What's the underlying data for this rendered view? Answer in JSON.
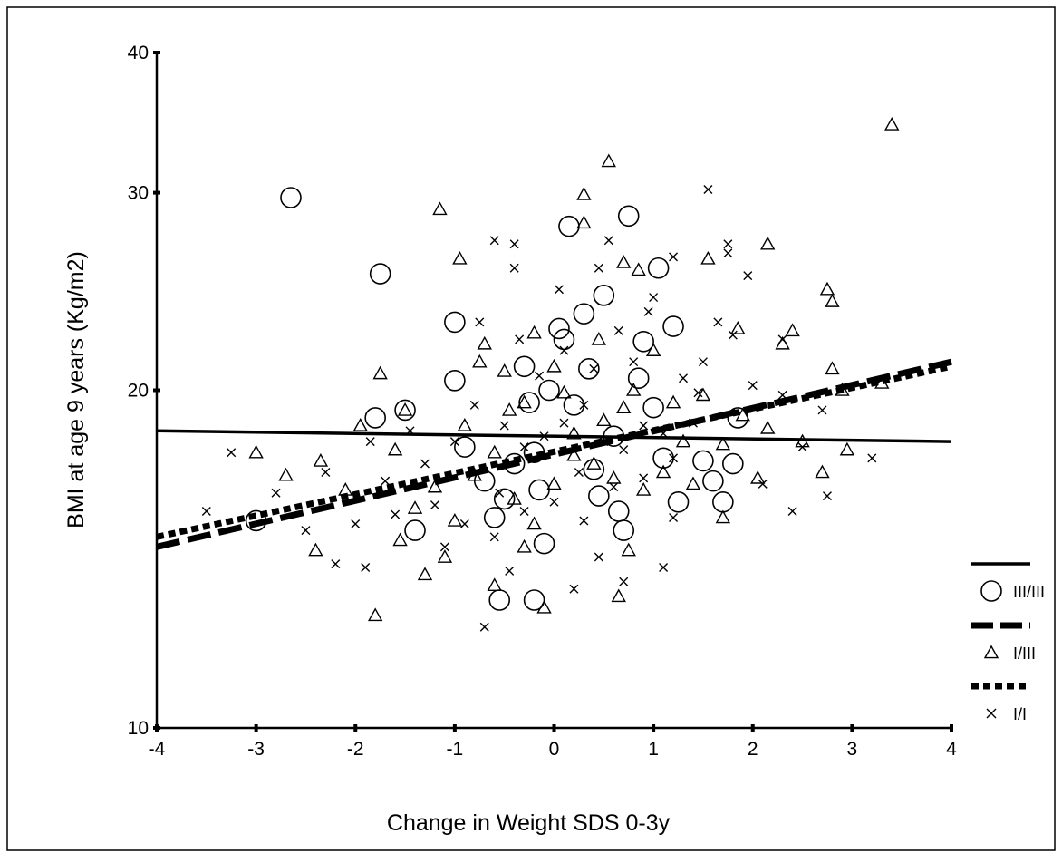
{
  "chart_data": {
    "type": "scatter",
    "xlabel": "Change in Weight SDS 0-3y",
    "ylabel": "BMI at age 9 years (Kg/m2)",
    "xlim": [
      -4,
      4
    ],
    "ylim": [
      10,
      40
    ],
    "yscale": "log",
    "x_ticks": [
      -4,
      -3,
      -2,
      -1,
      0,
      1,
      2,
      3,
      4
    ],
    "x_tick_labels": [
      "-4",
      "-3",
      "-2",
      "-1",
      "0",
      "1",
      "2",
      "3",
      "4"
    ],
    "y_ticks": [
      10,
      20,
      30,
      40
    ],
    "y_tick_labels": [
      "10",
      "20",
      "30",
      "40"
    ],
    "grid": false,
    "legend_position": "right",
    "fit_lines": [
      {
        "group": "III/III",
        "style": "solid",
        "x": [
          -4,
          4
        ],
        "y": [
          18.4,
          18.0
        ]
      },
      {
        "group": "I/III",
        "style": "dashed",
        "x": [
          -4,
          4
        ],
        "y": [
          14.5,
          21.2
        ]
      },
      {
        "group": "I/I",
        "style": "dotted",
        "x": [
          -4,
          4
        ],
        "y": [
          14.8,
          21.0
        ]
      }
    ],
    "series": [
      {
        "name": "III/III",
        "marker": "circle",
        "points": [
          [
            -2.65,
            29.7
          ],
          [
            -1.75,
            25.4
          ],
          [
            -3.0,
            15.3
          ],
          [
            -1.8,
            18.9
          ],
          [
            -1.5,
            19.2
          ],
          [
            -1.4,
            15.0
          ],
          [
            -1.0,
            23.0
          ],
          [
            -1.0,
            20.4
          ],
          [
            -0.9,
            17.8
          ],
          [
            -0.7,
            16.6
          ],
          [
            -0.6,
            15.4
          ],
          [
            -0.55,
            13.0
          ],
          [
            -0.5,
            16.0
          ],
          [
            -0.4,
            17.2
          ],
          [
            -0.3,
            21.0
          ],
          [
            -0.25,
            19.5
          ],
          [
            -0.2,
            17.6
          ],
          [
            -0.15,
            16.3
          ],
          [
            -0.1,
            14.6
          ],
          [
            -0.05,
            20.0
          ],
          [
            0.05,
            22.7
          ],
          [
            0.1,
            22.2
          ],
          [
            0.15,
            28.0
          ],
          [
            0.2,
            19.4
          ],
          [
            0.3,
            23.4
          ],
          [
            0.4,
            17.0
          ],
          [
            0.45,
            16.1
          ],
          [
            0.5,
            24.3
          ],
          [
            0.6,
            18.2
          ],
          [
            0.65,
            15.6
          ],
          [
            0.7,
            15.0
          ],
          [
            0.75,
            28.6
          ],
          [
            0.85,
            20.5
          ],
          [
            0.9,
            22.1
          ],
          [
            1.0,
            19.3
          ],
          [
            1.05,
            25.7
          ],
          [
            1.1,
            17.4
          ],
          [
            1.2,
            22.8
          ],
          [
            1.25,
            15.9
          ],
          [
            1.5,
            17.3
          ],
          [
            1.6,
            16.6
          ],
          [
            1.7,
            15.9
          ],
          [
            1.8,
            17.2
          ],
          [
            1.85,
            18.9
          ],
          [
            -0.2,
            13.0
          ],
          [
            0.35,
            20.9
          ]
        ]
      },
      {
        "name": "I/III",
        "marker": "triangle",
        "points": [
          [
            3.4,
            34.5
          ],
          [
            0.55,
            32.0
          ],
          [
            -1.15,
            29.0
          ],
          [
            0.3,
            29.9
          ],
          [
            0.3,
            28.2
          ],
          [
            -0.95,
            26.2
          ],
          [
            0.7,
            26.0
          ],
          [
            0.85,
            25.6
          ],
          [
            2.15,
            27.0
          ],
          [
            1.55,
            26.2
          ],
          [
            2.75,
            24.6
          ],
          [
            2.8,
            24.0
          ],
          [
            1.85,
            22.7
          ],
          [
            2.4,
            22.6
          ],
          [
            2.3,
            22.0
          ],
          [
            2.9,
            20.0
          ],
          [
            3.3,
            20.3
          ],
          [
            2.8,
            20.9
          ],
          [
            2.15,
            18.5
          ],
          [
            2.5,
            18.0
          ],
          [
            2.7,
            16.9
          ],
          [
            2.05,
            16.7
          ],
          [
            2.95,
            17.7
          ],
          [
            1.4,
            16.5
          ],
          [
            1.7,
            15.4
          ],
          [
            -1.3,
            13.7
          ],
          [
            -1.8,
            12.6
          ],
          [
            -0.6,
            13.4
          ],
          [
            0.65,
            13.1
          ],
          [
            -0.1,
            12.8
          ],
          [
            -2.4,
            14.4
          ],
          [
            -2.1,
            16.3
          ],
          [
            -2.7,
            16.8
          ],
          [
            -2.35,
            17.3
          ],
          [
            -1.95,
            18.6
          ],
          [
            -1.75,
            20.7
          ],
          [
            -3.0,
            17.6
          ],
          [
            -1.5,
            19.2
          ],
          [
            -1.6,
            17.7
          ],
          [
            -1.2,
            16.4
          ],
          [
            -0.7,
            22.0
          ],
          [
            -0.5,
            20.8
          ],
          [
            -0.3,
            19.5
          ],
          [
            -0.2,
            22.5
          ],
          [
            0.0,
            21.0
          ],
          [
            0.2,
            18.3
          ],
          [
            0.4,
            17.2
          ],
          [
            0.5,
            18.8
          ],
          [
            0.8,
            20.0
          ],
          [
            1.0,
            21.7
          ],
          [
            1.2,
            19.5
          ],
          [
            1.3,
            18.0
          ],
          [
            1.5,
            19.8
          ],
          [
            1.9,
            19.0
          ],
          [
            -1.4,
            15.7
          ],
          [
            -1.0,
            15.3
          ],
          [
            -0.8,
            16.8
          ],
          [
            -0.6,
            17.6
          ],
          [
            -0.4,
            16.0
          ],
          [
            -0.2,
            15.2
          ],
          [
            0.0,
            16.5
          ],
          [
            0.2,
            17.5
          ],
          [
            0.6,
            16.7
          ],
          [
            0.9,
            16.3
          ],
          [
            1.1,
            16.9
          ],
          [
            -0.9,
            18.6
          ],
          [
            -0.45,
            19.2
          ],
          [
            0.1,
            19.9
          ],
          [
            0.7,
            19.3
          ],
          [
            1.7,
            17.9
          ],
          [
            -1.1,
            14.2
          ],
          [
            -0.3,
            14.5
          ],
          [
            0.75,
            14.4
          ],
          [
            -1.55,
            14.7
          ],
          [
            -0.75,
            21.2
          ],
          [
            0.45,
            22.2
          ]
        ]
      },
      {
        "name": "I/I",
        "marker": "x",
        "points": [
          [
            1.55,
            30.2
          ],
          [
            -0.6,
            27.2
          ],
          [
            -0.4,
            27.0
          ],
          [
            0.55,
            27.2
          ],
          [
            1.75,
            27.0
          ],
          [
            1.75,
            26.5
          ],
          [
            -0.4,
            25.7
          ],
          [
            0.05,
            24.6
          ],
          [
            0.45,
            25.7
          ],
          [
            1.2,
            26.3
          ],
          [
            1.95,
            25.3
          ],
          [
            2.3,
            22.2
          ],
          [
            3.2,
            17.4
          ],
          [
            -3.25,
            17.6
          ],
          [
            -3.5,
            15.6
          ],
          [
            -2.2,
            14.0
          ],
          [
            -1.9,
            13.9
          ],
          [
            -0.7,
            12.3
          ],
          [
            0.2,
            13.3
          ],
          [
            0.7,
            13.5
          ],
          [
            1.1,
            13.9
          ],
          [
            2.4,
            15.6
          ],
          [
            2.75,
            16.1
          ],
          [
            -2.8,
            16.2
          ],
          [
            -2.5,
            15.0
          ],
          [
            -1.6,
            15.5
          ],
          [
            -1.3,
            17.2
          ],
          [
            -1.0,
            18.0
          ],
          [
            -0.8,
            19.4
          ],
          [
            -0.5,
            18.6
          ],
          [
            -0.3,
            17.8
          ],
          [
            -0.1,
            18.2
          ],
          [
            0.1,
            18.7
          ],
          [
            0.3,
            19.4
          ],
          [
            0.5,
            18.0
          ],
          [
            0.7,
            17.7
          ],
          [
            0.9,
            18.6
          ],
          [
            1.1,
            18.3
          ],
          [
            1.3,
            20.5
          ],
          [
            1.5,
            21.2
          ],
          [
            2.0,
            20.2
          ],
          [
            2.3,
            19.8
          ],
          [
            -1.7,
            16.6
          ],
          [
            -1.2,
            15.8
          ],
          [
            -0.9,
            15.2
          ],
          [
            -0.6,
            14.8
          ],
          [
            -0.3,
            15.6
          ],
          [
            0.0,
            15.9
          ],
          [
            0.3,
            15.3
          ],
          [
            0.6,
            16.4
          ],
          [
            0.9,
            16.7
          ],
          [
            1.2,
            17.4
          ],
          [
            1.4,
            18.7
          ],
          [
            2.5,
            17.8
          ],
          [
            -0.75,
            23.0
          ],
          [
            -0.35,
            22.2
          ],
          [
            0.1,
            21.7
          ],
          [
            0.65,
            22.6
          ],
          [
            0.95,
            23.5
          ],
          [
            1.65,
            23.0
          ],
          [
            -1.45,
            18.4
          ],
          [
            -0.15,
            20.6
          ],
          [
            0.4,
            20.9
          ],
          [
            0.8,
            21.2
          ],
          [
            1.8,
            22.4
          ],
          [
            2.7,
            19.2
          ],
          [
            -2.0,
            15.2
          ],
          [
            -1.1,
            14.5
          ],
          [
            -0.45,
            13.8
          ],
          [
            0.45,
            14.2
          ],
          [
            1.2,
            15.4
          ],
          [
            2.1,
            16.5
          ],
          [
            -2.3,
            16.9
          ],
          [
            -1.85,
            18.0
          ],
          [
            -0.55,
            16.2
          ],
          [
            0.25,
            16.9
          ],
          [
            1.45,
            19.9
          ],
          [
            1.0,
            24.2
          ]
        ]
      }
    ],
    "legend": [
      {
        "line": "solid",
        "marker": "circle",
        "label": "III/III"
      },
      {
        "line": "dashed",
        "marker": "triangle",
        "label": "I/III"
      },
      {
        "line": "dotted",
        "marker": "x",
        "label": "I/I"
      }
    ]
  }
}
